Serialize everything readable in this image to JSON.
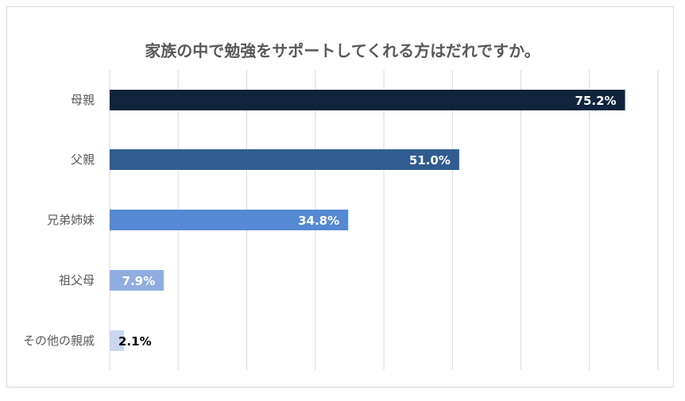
{
  "chart_data": {
    "type": "bar",
    "orientation": "horizontal",
    "title": "家族の中で勉強をサポートしてくれる方はだれですか。",
    "categories": [
      "母親",
      "父親",
      "兄弟姉妹",
      "祖父母",
      "その他の親戚"
    ],
    "values": [
      75.2,
      51.0,
      34.8,
      7.9,
      2.1
    ],
    "data_labels": [
      "75.2%",
      "51.0%",
      "34.8%",
      "7.9%",
      "2.1%"
    ],
    "bar_colors": [
      "#10243e",
      "#305c90",
      "#5589d3",
      "#8faedf",
      "#c9d7ef"
    ],
    "label_colors": [
      "#ffffff",
      "#ffffff",
      "#ffffff",
      "#ffffff",
      "#000000"
    ],
    "xlim": [
      0,
      80
    ],
    "grid": true,
    "xlabel": "",
    "ylabel": ""
  }
}
